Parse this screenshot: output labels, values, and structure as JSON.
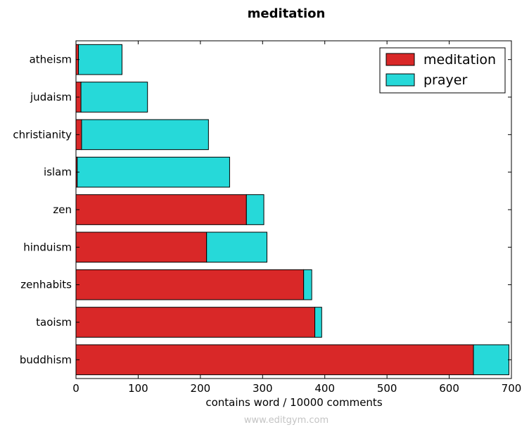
{
  "chart_data": {
    "type": "bar",
    "orientation": "horizontal",
    "stacked": true,
    "title": "meditation",
    "xlabel": "contains word / 10000 comments",
    "ylabel": "",
    "xlim": [
      0,
      700
    ],
    "xticks": [
      0,
      100,
      200,
      300,
      400,
      500,
      600,
      700
    ],
    "categories": [
      "atheism",
      "judaism",
      "christianity",
      "islam",
      "zen",
      "hinduism",
      "zenhabits",
      "taoism",
      "buddhism"
    ],
    "series": [
      {
        "name": "meditation",
        "color": "#d92828",
        "values": [
          4,
          8,
          9,
          2,
          274,
          210,
          366,
          384,
          639
        ]
      },
      {
        "name": "prayer",
        "color": "#26d9d9",
        "values": [
          70,
          107,
          204,
          245,
          28,
          97,
          13,
          11,
          57
        ]
      }
    ],
    "legend_position": "top-right",
    "grid": false
  },
  "watermark": "www.editgym.com"
}
